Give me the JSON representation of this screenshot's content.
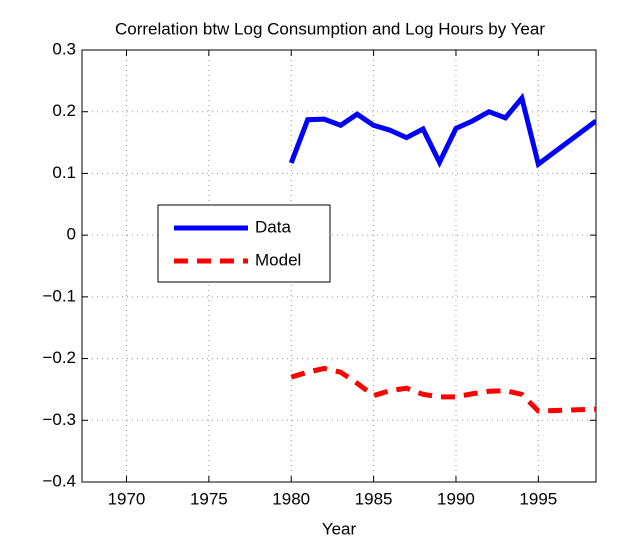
{
  "chart_data": {
    "type": "line",
    "title": "Correlation btw Log Consumption and Log Hours by Year",
    "x_label": "Year",
    "x": [
      1980,
      1981,
      1982,
      1983,
      1984,
      1985,
      1986,
      1987,
      1988,
      1989,
      1990,
      1991,
      1992,
      1993,
      1994,
      1995,
      1998.5
    ],
    "series": [
      {
        "name": "Data",
        "color": "#0000ff",
        "dash": "solid",
        "values": [
          0.117,
          0.187,
          0.188,
          0.178,
          0.196,
          0.178,
          0.17,
          0.158,
          0.172,
          0.118,
          0.173,
          0.185,
          0.2,
          0.19,
          0.222,
          0.115,
          0.185
        ]
      },
      {
        "name": "Model",
        "color": "#ff0000",
        "dash": "dashed",
        "values": [
          -0.23,
          -0.222,
          -0.216,
          -0.222,
          -0.24,
          -0.26,
          -0.252,
          -0.248,
          -0.258,
          -0.262,
          -0.262,
          -0.257,
          -0.253,
          -0.252,
          -0.258,
          -0.285,
          -0.282
        ]
      }
    ],
    "xlim": [
      1967.3,
      1998.5
    ],
    "xticks": [
      1970,
      1975,
      1980,
      1985,
      1990,
      1995
    ],
    "ylim": [
      -0.4,
      0.3
    ],
    "yticks": [
      {
        "value": -0.4,
        "label": "−0.4"
      },
      {
        "value": -0.3,
        "label": "−0.3"
      },
      {
        "value": -0.2,
        "label": "−0.2"
      },
      {
        "value": -0.1,
        "label": "−0.1"
      },
      0,
      0.1,
      0.2,
      0.3
    ],
    "grid": true,
    "legend": "west"
  }
}
